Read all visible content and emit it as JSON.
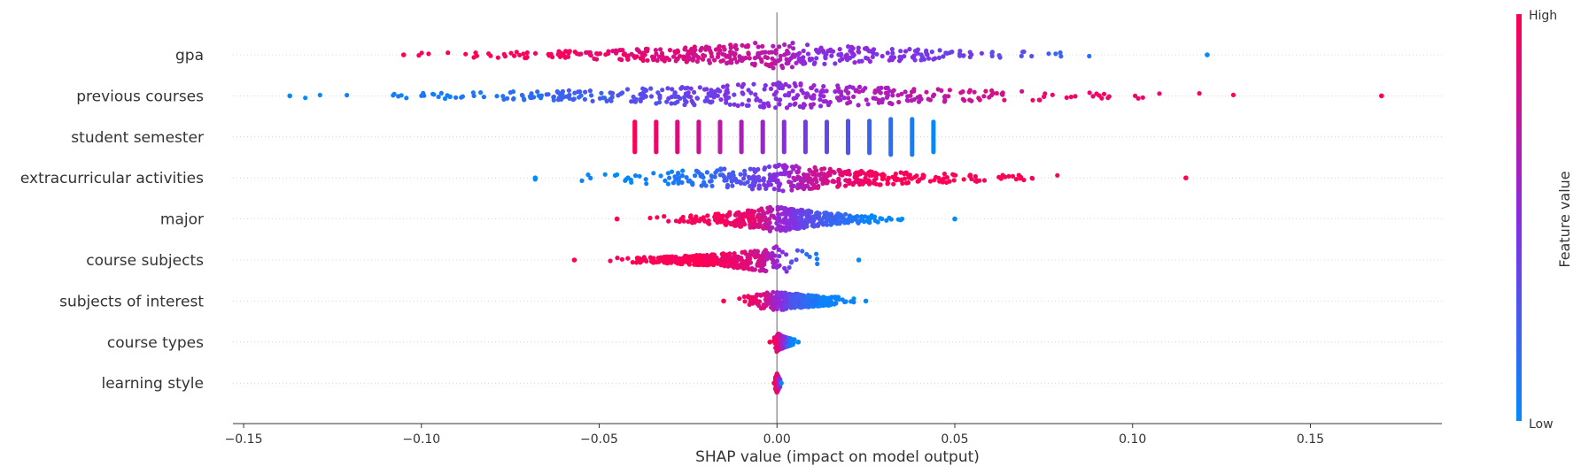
{
  "chart_data": {
    "type": "scatter",
    "subtype": "shap-beeswarm",
    "xlabel": "SHAP value (impact on model output)",
    "xlim": [
      -0.153,
      0.187
    ],
    "xticks": [
      -0.15,
      -0.1,
      -0.05,
      0.0,
      0.05,
      0.1,
      0.15
    ],
    "xtick_labels": [
      "−0.15",
      "−0.10",
      "−0.05",
      "0.00",
      "0.05",
      "0.10",
      "0.15"
    ],
    "zero_line": 0.0,
    "colorbar": {
      "title": "Feature value",
      "high_label": "High",
      "low_label": "Low",
      "high_color": "#ff0052",
      "mid_color": "#8a2be2",
      "low_color": "#008bfb"
    },
    "series": [
      {
        "name": "gpa",
        "x_min": -0.105,
        "x_max": 0.121,
        "color_trend": "high_left",
        "points": [
          {
            "x": -0.104,
            "v": 1.0
          },
          {
            "x": -0.09,
            "v": 1.0
          },
          {
            "x": -0.075,
            "v": 1.0
          },
          {
            "x": -0.06,
            "v": 0.95
          },
          {
            "x": -0.045,
            "v": 0.9
          },
          {
            "x": -0.03,
            "v": 0.85
          },
          {
            "x": -0.02,
            "v": 0.8
          },
          {
            "x": -0.01,
            "v": 0.75
          },
          {
            "x": 0.0,
            "v": 0.7
          },
          {
            "x": 0.008,
            "v": 0.5
          },
          {
            "x": 0.02,
            "v": 0.5
          },
          {
            "x": 0.035,
            "v": 0.45
          },
          {
            "x": 0.05,
            "v": 0.4
          },
          {
            "x": 0.065,
            "v": 0.35
          },
          {
            "x": 0.08,
            "v": 0.2
          },
          {
            "x": 0.095,
            "v": 0.1
          },
          {
            "x": 0.11,
            "v": 0.05
          },
          {
            "x": 0.12,
            "v": 0.0
          }
        ]
      },
      {
        "name": "previous courses",
        "x_min": -0.137,
        "x_max": 0.17,
        "color_trend": "high_right",
        "points": [
          {
            "x": -0.137,
            "v": 0.0
          },
          {
            "x": -0.125,
            "v": 0.0
          },
          {
            "x": -0.11,
            "v": 0.05
          },
          {
            "x": -0.09,
            "v": 0.1
          },
          {
            "x": -0.07,
            "v": 0.15
          },
          {
            "x": -0.05,
            "v": 0.25
          },
          {
            "x": -0.03,
            "v": 0.35
          },
          {
            "x": -0.01,
            "v": 0.45
          },
          {
            "x": 0.0,
            "v": 0.5
          },
          {
            "x": 0.02,
            "v": 0.6
          },
          {
            "x": 0.04,
            "v": 0.7
          },
          {
            "x": 0.06,
            "v": 0.8
          },
          {
            "x": 0.08,
            "v": 0.9
          },
          {
            "x": 0.1,
            "v": 0.95
          },
          {
            "x": 0.12,
            "v": 1.0
          },
          {
            "x": 0.14,
            "v": 1.0
          },
          {
            "x": 0.153,
            "v": 1.0
          },
          {
            "x": 0.17,
            "v": 1.0
          }
        ]
      },
      {
        "name": "student semester",
        "x_min": -0.04,
        "x_max": 0.044,
        "color_trend": "high_left",
        "discrete_x": [
          -0.04,
          -0.034,
          -0.028,
          -0.022,
          -0.016,
          -0.01,
          -0.004,
          0.002,
          0.008,
          0.014,
          0.02,
          0.026,
          0.032,
          0.038,
          0.044
        ]
      },
      {
        "name": "extracurricular activities",
        "x_min": -0.068,
        "x_max": 0.115,
        "color_trend": "high_right",
        "points": [
          {
            "x": -0.068,
            "v": 0.0
          },
          {
            "x": -0.048,
            "v": 0.0
          },
          {
            "x": -0.035,
            "v": 0.05
          },
          {
            "x": -0.02,
            "v": 0.15
          },
          {
            "x": -0.01,
            "v": 0.3
          },
          {
            "x": 0.0,
            "v": 0.5
          },
          {
            "x": 0.01,
            "v": 0.75
          },
          {
            "x": 0.02,
            "v": 0.9
          },
          {
            "x": 0.03,
            "v": 1.0
          },
          {
            "x": 0.05,
            "v": 1.0
          },
          {
            "x": 0.057,
            "v": 1.0
          },
          {
            "x": 0.073,
            "v": 1.0
          },
          {
            "x": 0.115,
            "v": 1.0
          }
        ]
      },
      {
        "name": "major",
        "x_min": -0.045,
        "x_max": 0.05,
        "color_trend": "high_left",
        "points": [
          {
            "x": -0.045,
            "v": 1.0
          },
          {
            "x": -0.03,
            "v": 1.0
          },
          {
            "x": -0.015,
            "v": 0.95
          },
          {
            "x": -0.005,
            "v": 0.85
          },
          {
            "x": 0.0,
            "v": 0.6
          },
          {
            "x": 0.01,
            "v": 0.3
          },
          {
            "x": 0.025,
            "v": 0.05
          },
          {
            "x": 0.04,
            "v": 0.0
          },
          {
            "x": 0.05,
            "v": 0.0
          }
        ]
      },
      {
        "name": "course subjects",
        "x_min": -0.057,
        "x_max": 0.023,
        "color_trend": "high_left",
        "points": [
          {
            "x": -0.057,
            "v": 1.0
          },
          {
            "x": -0.025,
            "v": 1.0
          },
          {
            "x": -0.015,
            "v": 0.95
          },
          {
            "x": -0.005,
            "v": 0.8
          },
          {
            "x": 0.0,
            "v": 0.55
          },
          {
            "x": 0.005,
            "v": 0.3
          },
          {
            "x": 0.012,
            "v": 0.1
          },
          {
            "x": 0.023,
            "v": 0.0
          }
        ]
      },
      {
        "name": "subjects of interest",
        "x_min": -0.015,
        "x_max": 0.025,
        "color_trend": "high_left",
        "points": [
          {
            "x": -0.015,
            "v": 1.0
          },
          {
            "x": -0.008,
            "v": 0.95
          },
          {
            "x": -0.003,
            "v": 0.8
          },
          {
            "x": 0.0,
            "v": 0.55
          },
          {
            "x": 0.004,
            "v": 0.3
          },
          {
            "x": 0.012,
            "v": 0.05
          },
          {
            "x": 0.025,
            "v": 0.0
          }
        ]
      },
      {
        "name": "course types",
        "x_min": -0.002,
        "x_max": 0.006,
        "color_trend": "high_left",
        "points": [
          {
            "x": -0.002,
            "v": 1.0
          },
          {
            "x": 0.0,
            "v": 0.9
          },
          {
            "x": 0.002,
            "v": 0.5
          },
          {
            "x": 0.004,
            "v": 0.0
          },
          {
            "x": 0.006,
            "v": 0.0
          }
        ]
      },
      {
        "name": "learning style",
        "x_min": -0.0008,
        "x_max": 0.0012,
        "color_trend": "high_left",
        "points": [
          {
            "x": -0.0008,
            "v": 1.0
          },
          {
            "x": 0.0,
            "v": 0.9
          },
          {
            "x": 0.0012,
            "v": 0.0
          }
        ]
      }
    ]
  }
}
